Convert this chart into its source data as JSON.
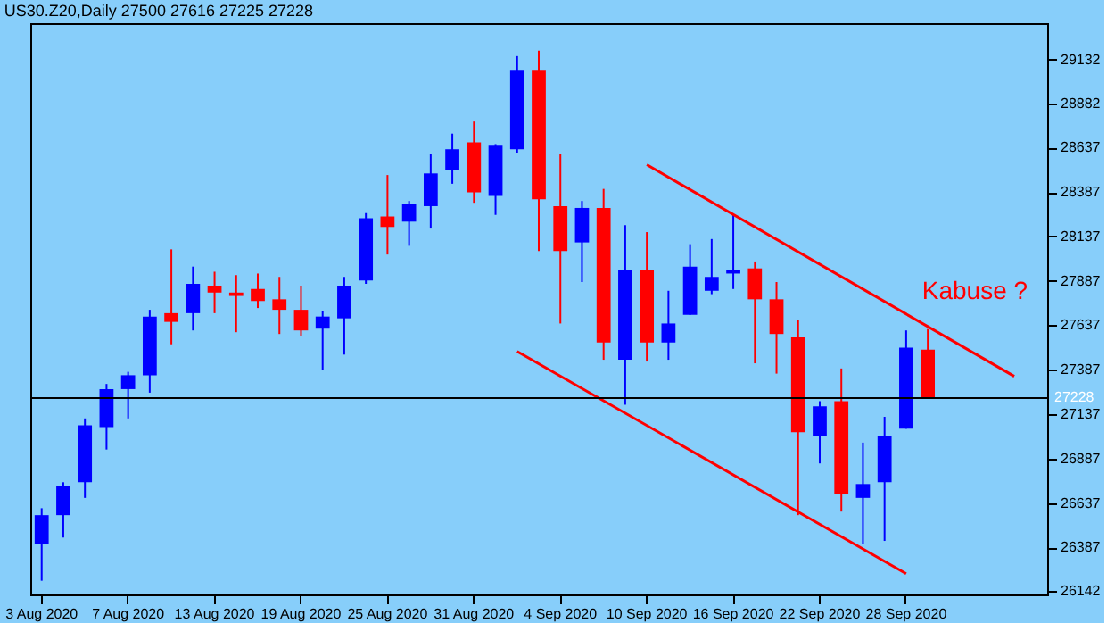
{
  "chart_data": {
    "type": "candlestick",
    "title": "US30.Z20,Daily 27500 27616 27225 27228",
    "categories": [
      "3 Aug 2020",
      null,
      null,
      null,
      "7 Aug 2020",
      null,
      null,
      null,
      "13 Aug 2020",
      null,
      null,
      null,
      "19 Aug 2020",
      null,
      null,
      null,
      "25 Aug 2020",
      null,
      null,
      null,
      "31 Aug 2020",
      null,
      null,
      null,
      "4 Sep 2020",
      null,
      null,
      null,
      "10 Sep 2020",
      null,
      null,
      null,
      "16 Sep 2020",
      null,
      null,
      null,
      "22 Sep 2020",
      null,
      null,
      null,
      "28 Sep 2020",
      null,
      null,
      null,
      null,
      null,
      null
    ],
    "ohlc": [
      [
        26404,
        26608,
        26200,
        26569
      ],
      [
        26569,
        26754,
        26443,
        26734
      ],
      [
        26754,
        27113,
        26666,
        27074
      ],
      [
        27064,
        27307,
        26938,
        27278
      ],
      [
        27278,
        27375,
        27113,
        27356
      ],
      [
        27356,
        27724,
        27258,
        27686
      ],
      [
        27705,
        28064,
        27530,
        27656
      ],
      [
        27705,
        27967,
        27608,
        27870
      ],
      [
        27860,
        27938,
        27705,
        27821
      ],
      [
        27821,
        27919,
        27598,
        27802
      ],
      [
        27841,
        27928,
        27734,
        27773
      ],
      [
        27783,
        27909,
        27588,
        27724
      ],
      [
        27724,
        27860,
        27579,
        27608
      ],
      [
        27618,
        27715,
        27385,
        27686
      ],
      [
        27676,
        27909,
        27472,
        27860
      ],
      [
        27889,
        28268,
        27870,
        28239
      ],
      [
        28249,
        28482,
        28035,
        28190
      ],
      [
        28220,
        28336,
        28084,
        28317
      ],
      [
        28307,
        28598,
        28181,
        28491
      ],
      [
        28511,
        28715,
        28433,
        28627
      ],
      [
        28666,
        28783,
        28326,
        28385
      ],
      [
        28365,
        28656,
        28258,
        28647
      ],
      [
        28627,
        29151,
        28608,
        29074
      ],
      [
        29074,
        29181,
        28054,
        28346
      ],
      [
        28307,
        28598,
        27647,
        28054
      ],
      [
        28103,
        28336,
        27880,
        28297
      ],
      [
        28297,
        28404,
        27443,
        27540
      ],
      [
        27443,
        28200,
        27190,
        27948
      ],
      [
        27948,
        28161,
        27433,
        27540
      ],
      [
        27540,
        27831,
        27443,
        27647
      ],
      [
        27695,
        28093,
        27695,
        27967
      ],
      [
        27831,
        28122,
        27812,
        27909
      ],
      [
        27928,
        28258,
        27841,
        27948
      ],
      [
        27957,
        27996,
        27423,
        27783
      ],
      [
        27783,
        27880,
        27365,
        27588
      ],
      [
        27569,
        27666,
        26569,
        27035
      ],
      [
        27016,
        27210,
        26860,
        27181
      ],
      [
        27210,
        27394,
        26589,
        26686
      ],
      [
        26666,
        26977,
        26404,
        26744
      ],
      [
        26754,
        27122,
        26424,
        27016
      ],
      [
        27055,
        27608,
        27055,
        27511
      ],
      [
        27500,
        27616,
        27225,
        27228
      ],
      null,
      null,
      null,
      null,
      null
    ],
    "colors": [
      "#0000ff",
      "#0000ff",
      "#0000ff",
      "#0000ff",
      "#0000ff",
      "#0000ff",
      "#ff0000",
      "#0000ff",
      "#ff0000",
      "#ff0000",
      "#ff0000",
      "#ff0000",
      "#ff0000",
      "#0000ff",
      "#0000ff",
      "#0000ff",
      "#ff0000",
      "#0000ff",
      "#0000ff",
      "#0000ff",
      "#ff0000",
      "#0000ff",
      "#0000ff",
      "#ff0000",
      "#ff0000",
      "#0000ff",
      "#ff0000",
      "#0000ff",
      "#ff0000",
      "#0000ff",
      "#0000ff",
      "#0000ff",
      "#0000ff",
      "#ff0000",
      "#ff0000",
      "#ff0000",
      "#0000ff",
      "#ff0000",
      "#0000ff",
      "#0000ff",
      "#0000ff",
      "#ff0000",
      null,
      null,
      null,
      null,
      null
    ],
    "series": [
      {
        "type": "line",
        "color": "#ff0000",
        "values": [
          null,
          null,
          null,
          null,
          null,
          null,
          null,
          null,
          null,
          null,
          null,
          null,
          null,
          null,
          null,
          null,
          null,
          null,
          null,
          null,
          null,
          null,
          null,
          null,
          null,
          null,
          null,
          null,
          28540,
          null,
          null,
          null,
          null,
          null,
          null,
          null,
          null,
          null,
          null,
          null,
          null,
          null,
          null,
          null,
          null,
          27350,
          null
        ]
      },
      {
        "type": "line",
        "color": "#ff0000",
        "values": [
          null,
          null,
          null,
          null,
          null,
          null,
          null,
          null,
          null,
          null,
          null,
          null,
          null,
          null,
          null,
          null,
          null,
          null,
          null,
          null,
          null,
          null,
          27490,
          null,
          null,
          null,
          null,
          null,
          null,
          null,
          null,
          null,
          null,
          null,
          null,
          null,
          null,
          null,
          null,
          null,
          26240,
          null,
          null,
          null,
          null,
          null,
          null
        ]
      }
    ],
    "ylim": [
      26123,
      29336
    ],
    "yticks": [
      26142,
      26387,
      26637,
      26887,
      27137,
      27387,
      27637,
      27887,
      28137,
      28387,
      28637,
      28882,
      29132
    ],
    "ref_lines": [
      {
        "axis": "y",
        "value": 27228,
        "label": "27228",
        "color": "#000000"
      }
    ],
    "annotations": [
      "Kabuse ?"
    ],
    "grid": false
  }
}
